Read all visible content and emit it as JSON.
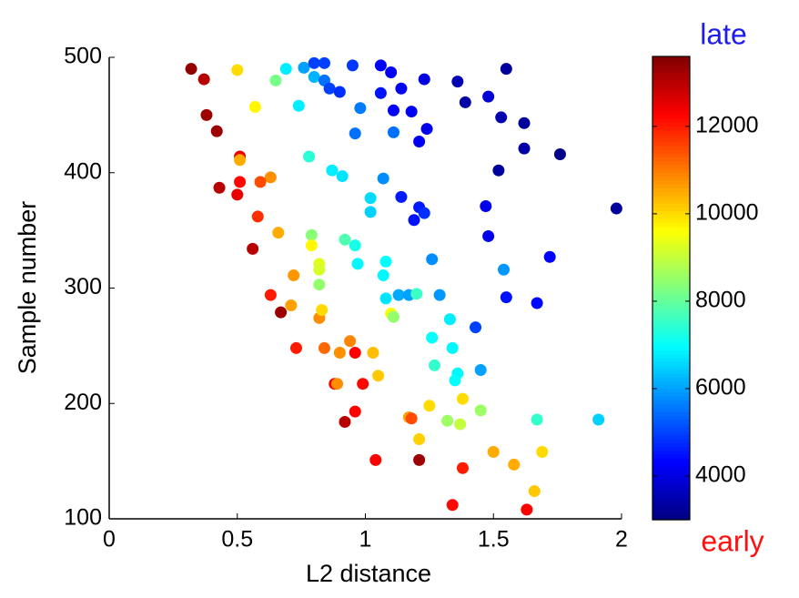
{
  "chart_data": {
    "type": "scatter",
    "xlabel": "L2 distance",
    "ylabel": "Sample number",
    "xlim": [
      0,
      2
    ],
    "xticks": [
      0,
      0.5,
      1,
      1.5,
      2
    ],
    "ylim": [
      100,
      500
    ],
    "yticks": [
      100,
      200,
      300,
      400,
      500
    ],
    "colormap": "jet",
    "clim": [
      3000,
      13600
    ],
    "cticks": [
      4000,
      6000,
      8000,
      10000,
      12000
    ],
    "colorbar_top_label": {
      "text": "late",
      "color": "#1c1cf0"
    },
    "colorbar_bottom_label": {
      "text": "early",
      "color": "#ff1010"
    },
    "x": [
      0.32,
      0.37,
      0.5,
      0.65,
      0.69,
      0.76,
      0.8,
      0.84,
      0.8,
      0.84,
      0.86,
      0.9,
      0.95,
      1.06,
      1.1,
      1.14,
      1.23,
      1.36,
      1.39,
      1.48,
      1.55,
      1.06,
      0.98,
      1.11,
      1.18,
      1.24,
      1.21,
      1.11,
      0.96,
      0.74,
      0.57,
      0.38,
      0.42,
      1.53,
      1.62,
      1.62,
      1.76,
      1.52,
      1.98,
      0.51,
      0.51,
      0.78,
      0.87,
      0.91,
      1.07,
      0.63,
      0.59,
      0.51,
      0.43,
      0.5,
      1.02,
      1.02,
      1.14,
      1.21,
      1.23,
      1.19,
      1.47,
      1.48,
      0.58,
      0.79,
      0.79,
      0.92,
      0.96,
      0.66,
      0.56,
      1.08,
      1.26,
      1.54,
      1.72,
      0.82,
      0.82,
      0.97,
      1.07,
      0.72,
      0.82,
      1.55,
      1.67,
      0.63,
      1.08,
      1.13,
      1.17,
      1.2,
      1.29,
      0.71,
      0.67,
      1.1,
      1.11,
      0.82,
      0.83,
      1.33,
      1.43,
      1.26,
      1.34,
      0.73,
      0.84,
      0.94,
      0.9,
      0.96,
      1.03,
      1.27,
      1.36,
      1.35,
      1.45,
      1.05,
      0.88,
      0.89,
      0.99,
      1.91,
      1.67,
      1.25,
      1.38,
      1.45,
      1.17,
      1.18,
      1.32,
      1.37,
      0.96,
      0.92,
      1.21,
      1.5,
      1.69,
      1.58,
      1.04,
      1.21,
      1.38,
      1.66,
      1.34,
      1.63
    ],
    "y": [
      490,
      481,
      489,
      480,
      490,
      491,
      495,
      495,
      483,
      480,
      473,
      470,
      493,
      493,
      487,
      473,
      481,
      479,
      461,
      466,
      490,
      469,
      456,
      454,
      453,
      438,
      427,
      435,
      434,
      458,
      457,
      450,
      436,
      448,
      443,
      421,
      416,
      402,
      369,
      414,
      411,
      414,
      402,
      397,
      395,
      396,
      392,
      392,
      387,
      381,
      378,
      366,
      379,
      370,
      365,
      359,
      371,
      345,
      362,
      346,
      337,
      342,
      337,
      348,
      334,
      323,
      325,
      316,
      327,
      321,
      316,
      321,
      311,
      311,
      303,
      292,
      287,
      294,
      291,
      294,
      294,
      295,
      294,
      285,
      279,
      278,
      275,
      274,
      281,
      273,
      266,
      257,
      248,
      248,
      248,
      254,
      244,
      244,
      244,
      233,
      226,
      220,
      229,
      224,
      217,
      217,
      217,
      186,
      186,
      198,
      204,
      194,
      188,
      187,
      185,
      182,
      193,
      184,
      169,
      158,
      158,
      147,
      151,
      151,
      144,
      124,
      112,
      108
    ],
    "c": [
      13400,
      13000,
      10000,
      8200,
      6800,
      6000,
      5000,
      5000,
      6200,
      5500,
      5000,
      4800,
      4900,
      4300,
      4200,
      4200,
      4000,
      3500,
      3400,
      3900,
      3300,
      4500,
      5600,
      4300,
      4200,
      4100,
      4200,
      5500,
      5500,
      6800,
      9700,
      13300,
      13300,
      3500,
      3300,
      3400,
      3100,
      3300,
      3300,
      12500,
      10500,
      7400,
      6800,
      6700,
      5800,
      10800,
      11500,
      12200,
      13000,
      12500,
      6600,
      6500,
      4600,
      4600,
      4800,
      4500,
      4100,
      4100,
      11800,
      8400,
      9700,
      7800,
      7200,
      10500,
      13000,
      7000,
      5800,
      5900,
      4300,
      9300,
      9200,
      6900,
      6900,
      10700,
      8500,
      4500,
      4400,
      12000,
      6700,
      6100,
      6000,
      7600,
      5900,
      10600,
      13300,
      9500,
      8500,
      10800,
      10000,
      6800,
      5000,
      7000,
      6900,
      12000,
      11200,
      10900,
      10800,
      12300,
      10300,
      7500,
      6900,
      7000,
      6000,
      10200,
      12300,
      10800,
      12200,
      6500,
      7500,
      10000,
      10000,
      8600,
      10600,
      11500,
      8600,
      9000,
      12300,
      13000,
      10100,
      10500,
      10000,
      10500,
      12300,
      13300,
      12000,
      10200,
      12200,
      12300
    ]
  }
}
